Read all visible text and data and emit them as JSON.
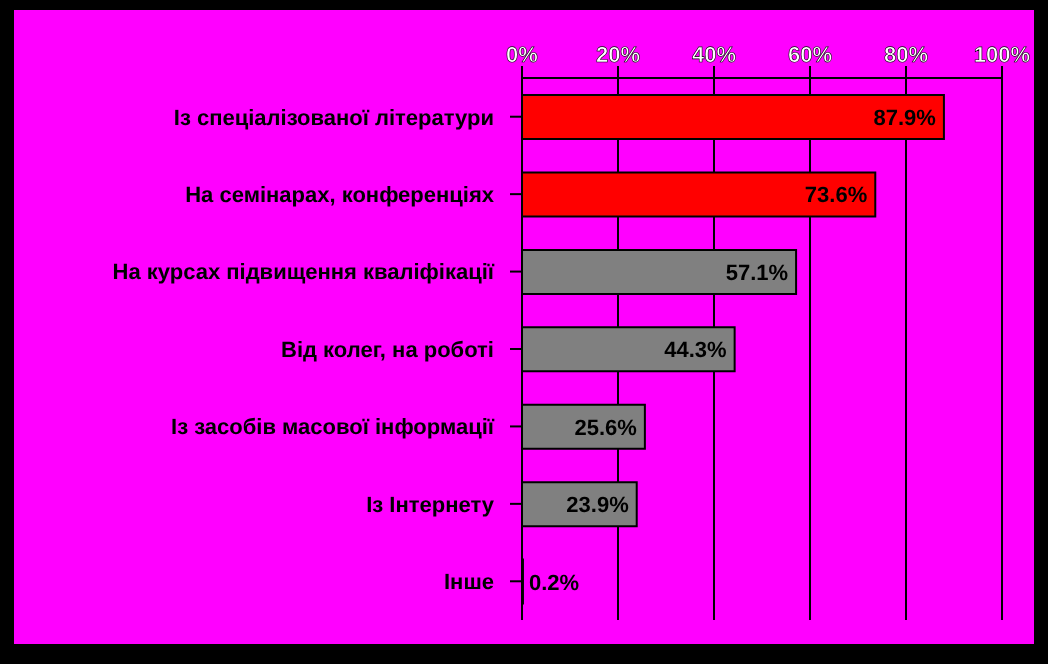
{
  "chart_data": {
    "type": "bar",
    "orientation": "horizontal",
    "categories": [
      "Із спеціалізованої літератури",
      "На семінарах, конференціях",
      "На курсах підвищення кваліфікації",
      "Від колег, на роботі",
      "Із засобів масової інформації",
      "Із Інтернету",
      "Інше"
    ],
    "values": [
      87.9,
      73.6,
      57.1,
      44.3,
      25.6,
      23.9,
      0.2
    ],
    "colors": [
      "#ff0000",
      "#ff0000",
      "#808080",
      "#808080",
      "#808080",
      "#808080",
      "#808080"
    ],
    "value_labels": [
      "87.9%",
      "73.6%",
      "57.1%",
      "44.3%",
      "25.6%",
      "23.9%",
      "0.2%"
    ],
    "xlim": [
      0,
      100
    ],
    "xticks": [
      {
        "value": 0,
        "label": "0%"
      },
      {
        "value": 20,
        "label": "20%"
      },
      {
        "value": 40,
        "label": "40%"
      },
      {
        "value": 60,
        "label": "60%"
      },
      {
        "value": 80,
        "label": "80%"
      },
      {
        "value": 100,
        "label": "100%"
      }
    ],
    "grid": "x",
    "legend": false
  }
}
